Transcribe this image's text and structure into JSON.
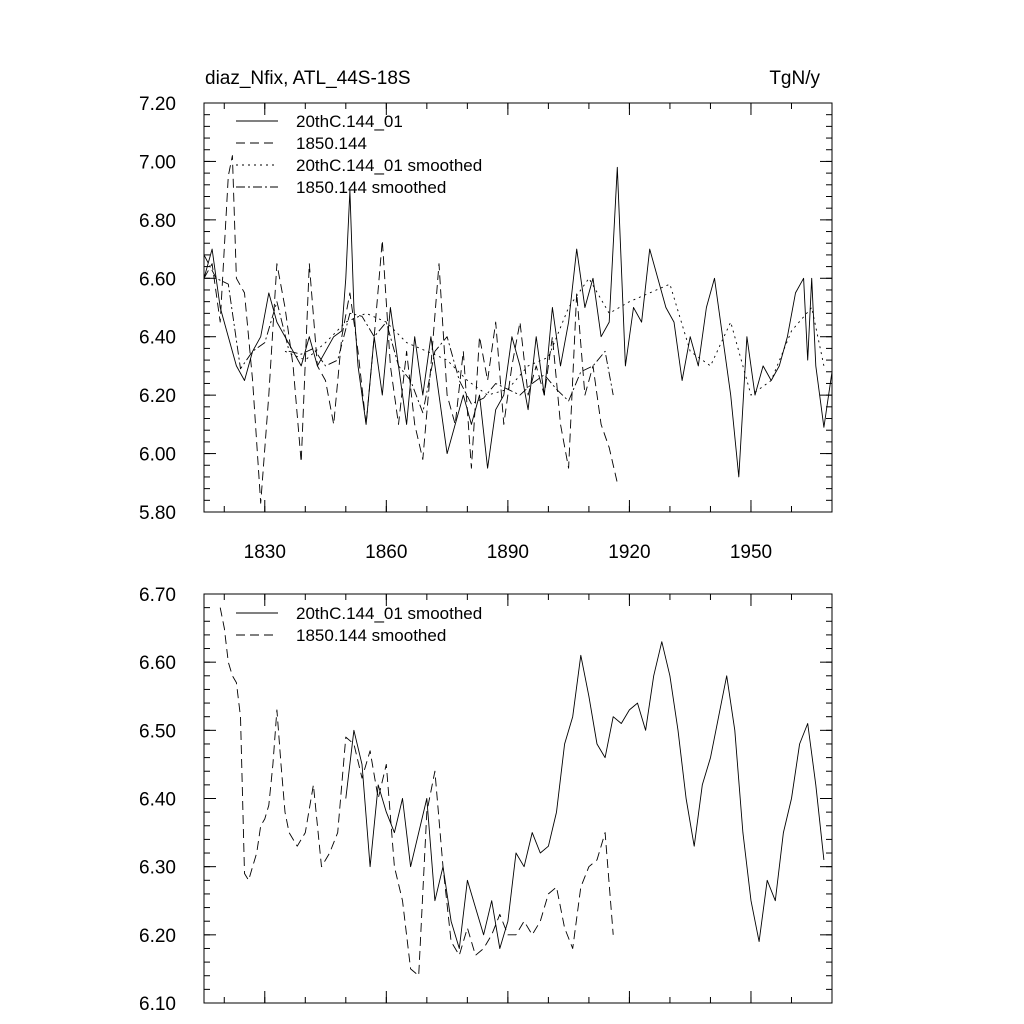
{
  "chart_data": [
    {
      "type": "line",
      "title": "diaz_Nfix, ATL_44S-18S",
      "units": "TgN/y",
      "xlim": [
        1815,
        1970
      ],
      "ylim": [
        5.8,
        7.2
      ],
      "yticks": [
        "7.20",
        "7.00",
        "6.80",
        "6.60",
        "6.40",
        "6.20",
        "6.00",
        "5.80"
      ],
      "ytick_values": [
        7.2,
        7.0,
        6.8,
        6.6,
        6.4,
        6.2,
        6.0,
        5.8
      ],
      "xticks": [
        "1830",
        "1860",
        "1890",
        "1920",
        "1950"
      ],
      "xtick_values": [
        1830,
        1860,
        1890,
        1920,
        1950
      ],
      "legend_position": "top-left",
      "series": [
        {
          "name": "20thC.144_01",
          "style": "solid",
          "x": [
            1815,
            1817,
            1819,
            1821,
            1823,
            1825,
            1827,
            1829,
            1831,
            1833,
            1835,
            1837,
            1839,
            1841,
            1843,
            1845,
            1847,
            1849,
            1850,
            1851,
            1852,
            1853,
            1855,
            1857,
            1859,
            1861,
            1863,
            1865,
            1867,
            1869,
            1871,
            1873,
            1875,
            1877,
            1879,
            1881,
            1883,
            1885,
            1887,
            1889,
            1891,
            1893,
            1895,
            1897,
            1899,
            1901,
            1903,
            1905,
            1907,
            1909,
            1911,
            1913,
            1915,
            1917,
            1919,
            1921,
            1923,
            1925,
            1927,
            1929,
            1931,
            1933,
            1935,
            1937,
            1939,
            1941,
            1943,
            1945,
            1947,
            1949,
            1951,
            1953,
            1955,
            1957,
            1959,
            1961,
            1963,
            1964,
            1965,
            1966,
            1968,
            1970
          ],
          "values": [
            6.6,
            6.7,
            6.5,
            6.4,
            6.3,
            6.25,
            6.35,
            6.4,
            6.55,
            6.45,
            6.4,
            6.35,
            6.3,
            6.4,
            6.3,
            6.35,
            6.4,
            6.42,
            6.6,
            6.9,
            6.5,
            6.3,
            6.1,
            6.4,
            6.2,
            6.5,
            6.3,
            6.1,
            6.4,
            6.2,
            6.4,
            6.2,
            6.0,
            6.1,
            6.2,
            6.1,
            6.2,
            5.95,
            6.15,
            6.2,
            6.4,
            6.3,
            6.15,
            6.4,
            6.2,
            6.5,
            6.3,
            6.45,
            6.7,
            6.5,
            6.6,
            6.4,
            6.45,
            6.98,
            6.3,
            6.5,
            6.45,
            6.7,
            6.6,
            6.5,
            6.45,
            6.25,
            6.4,
            6.3,
            6.5,
            6.6,
            6.4,
            6.2,
            5.92,
            6.4,
            6.2,
            6.3,
            6.25,
            6.3,
            6.4,
            6.55,
            6.6,
            6.32,
            6.6,
            6.3,
            6.09,
            6.28
          ]
        },
        {
          "name": "1850.144",
          "style": "dashed",
          "x": [
            1815,
            1817,
            1819,
            1821,
            1822,
            1823,
            1825,
            1827,
            1829,
            1831,
            1833,
            1835,
            1837,
            1839,
            1841,
            1843,
            1845,
            1847,
            1849,
            1851,
            1853,
            1855,
            1857,
            1859,
            1861,
            1863,
            1865,
            1867,
            1869,
            1871,
            1873,
            1875,
            1877,
            1879,
            1881,
            1883,
            1885,
            1887,
            1889,
            1891,
            1893,
            1895,
            1897,
            1899,
            1901,
            1903,
            1905,
            1907,
            1909,
            1911,
            1913,
            1915,
            1917
          ],
          "values": [
            6.6,
            6.65,
            6.45,
            6.95,
            7.02,
            6.6,
            6.55,
            6.25,
            5.83,
            6.2,
            6.65,
            6.5,
            6.3,
            5.97,
            6.65,
            6.3,
            6.25,
            6.1,
            6.4,
            6.55,
            6.35,
            6.1,
            6.4,
            6.73,
            6.3,
            6.1,
            6.35,
            6.1,
            5.98,
            6.3,
            6.65,
            6.2,
            6.1,
            6.35,
            5.95,
            6.4,
            6.25,
            6.45,
            6.1,
            6.3,
            6.45,
            6.2,
            6.3,
            6.2,
            6.4,
            6.1,
            5.95,
            6.55,
            6.2,
            6.3,
            6.1,
            6.02,
            5.9
          ]
        },
        {
          "name": "20thC.144_01 smoothed",
          "style": "dotted",
          "x": [
            1835,
            1840,
            1845,
            1850,
            1855,
            1860,
            1865,
            1870,
            1875,
            1880,
            1885,
            1890,
            1895,
            1900,
            1905,
            1910,
            1915,
            1920,
            1925,
            1930,
            1935,
            1940,
            1945,
            1950,
            1955,
            1960,
            1965,
            1968
          ],
          "values": [
            6.35,
            6.32,
            6.38,
            6.45,
            6.48,
            6.45,
            6.38,
            6.35,
            6.32,
            6.25,
            6.2,
            6.22,
            6.3,
            6.33,
            6.5,
            6.6,
            6.48,
            6.52,
            6.55,
            6.58,
            6.35,
            6.3,
            6.45,
            6.2,
            6.25,
            6.42,
            6.5,
            6.3
          ]
        },
        {
          "name": "1850.144 smoothed",
          "style": "dashdot",
          "x": [
            1815,
            1818,
            1821,
            1824,
            1827,
            1830,
            1833,
            1836,
            1839,
            1842,
            1845,
            1848,
            1851,
            1854,
            1857,
            1860,
            1863,
            1866,
            1869,
            1872,
            1875,
            1878,
            1881,
            1884,
            1887,
            1890,
            1893,
            1896,
            1899,
            1902,
            1905,
            1908,
            1911,
            1914,
            1916
          ],
          "values": [
            6.68,
            6.6,
            6.58,
            6.29,
            6.35,
            6.38,
            6.52,
            6.35,
            6.34,
            6.36,
            6.3,
            6.32,
            6.48,
            6.47,
            6.4,
            6.45,
            6.3,
            6.25,
            6.14,
            6.35,
            6.4,
            6.25,
            6.17,
            6.19,
            6.24,
            6.22,
            6.2,
            6.24,
            6.27,
            6.22,
            6.18,
            6.28,
            6.3,
            6.35,
            6.2
          ]
        }
      ]
    },
    {
      "type": "line",
      "title": "",
      "xlim": [
        1815,
        1970
      ],
      "ylim": [
        6.1,
        6.7
      ],
      "yticks": [
        "6.70",
        "6.60",
        "6.50",
        "6.40",
        "6.30",
        "6.20",
        "6.10"
      ],
      "ytick_values": [
        6.7,
        6.6,
        6.5,
        6.4,
        6.3,
        6.2,
        6.1
      ],
      "xticks": [],
      "xtick_values": [
        1830,
        1860,
        1890,
        1920,
        1950
      ],
      "legend_position": "top-left",
      "series": [
        {
          "name": "20thC.144_01 smoothed",
          "style": "solid",
          "x": [
            1850,
            1852,
            1854,
            1856,
            1858,
            1860,
            1862,
            1864,
            1866,
            1868,
            1870,
            1872,
            1874,
            1876,
            1878,
            1880,
            1882,
            1884,
            1886,
            1888,
            1890,
            1892,
            1894,
            1896,
            1898,
            1900,
            1902,
            1904,
            1906,
            1908,
            1910,
            1912,
            1914,
            1916,
            1918,
            1920,
            1922,
            1924,
            1926,
            1928,
            1930,
            1932,
            1934,
            1936,
            1938,
            1940,
            1942,
            1944,
            1946,
            1948,
            1950,
            1952,
            1954,
            1956,
            1958,
            1960,
            1962,
            1964,
            1966,
            1968
          ],
          "values": [
            6.4,
            6.5,
            6.45,
            6.3,
            6.42,
            6.38,
            6.35,
            6.4,
            6.3,
            6.35,
            6.4,
            6.25,
            6.3,
            6.22,
            6.18,
            6.28,
            6.24,
            6.2,
            6.25,
            6.18,
            6.22,
            6.32,
            6.3,
            6.35,
            6.32,
            6.33,
            6.38,
            6.48,
            6.52,
            6.61,
            6.55,
            6.48,
            6.46,
            6.52,
            6.51,
            6.53,
            6.54,
            6.5,
            6.58,
            6.63,
            6.58,
            6.5,
            6.4,
            6.33,
            6.42,
            6.46,
            6.52,
            6.58,
            6.5,
            6.35,
            6.25,
            6.19,
            6.28,
            6.25,
            6.35,
            6.4,
            6.48,
            6.51,
            6.42,
            6.31
          ]
        },
        {
          "name": "1850.144 smoothed",
          "style": "dashed",
          "x": [
            1819,
            1820,
            1821,
            1822,
            1823,
            1824,
            1825,
            1826,
            1827,
            1828,
            1829,
            1830,
            1831,
            1832,
            1833,
            1834,
            1835,
            1836,
            1838,
            1840,
            1842,
            1844,
            1846,
            1848,
            1850,
            1852,
            1854,
            1856,
            1858,
            1860,
            1862,
            1864,
            1866,
            1868,
            1870,
            1872,
            1874,
            1876,
            1878,
            1880,
            1882,
            1884,
            1886,
            1888,
            1890,
            1892,
            1894,
            1896,
            1898,
            1900,
            1902,
            1904,
            1906,
            1908,
            1910,
            1912,
            1914,
            1916
          ],
          "values": [
            6.68,
            6.65,
            6.6,
            6.58,
            6.57,
            6.52,
            6.29,
            6.28,
            6.3,
            6.32,
            6.36,
            6.37,
            6.39,
            6.45,
            6.53,
            6.45,
            6.38,
            6.35,
            6.33,
            6.35,
            6.42,
            6.3,
            6.32,
            6.35,
            6.49,
            6.48,
            6.43,
            6.47,
            6.4,
            6.45,
            6.3,
            6.25,
            6.15,
            6.14,
            6.38,
            6.44,
            6.3,
            6.19,
            6.17,
            6.21,
            6.17,
            6.18,
            6.2,
            6.23,
            6.2,
            6.2,
            6.22,
            6.2,
            6.22,
            6.26,
            6.27,
            6.21,
            6.18,
            6.27,
            6.3,
            6.31,
            6.35,
            6.2
          ]
        }
      ]
    }
  ]
}
